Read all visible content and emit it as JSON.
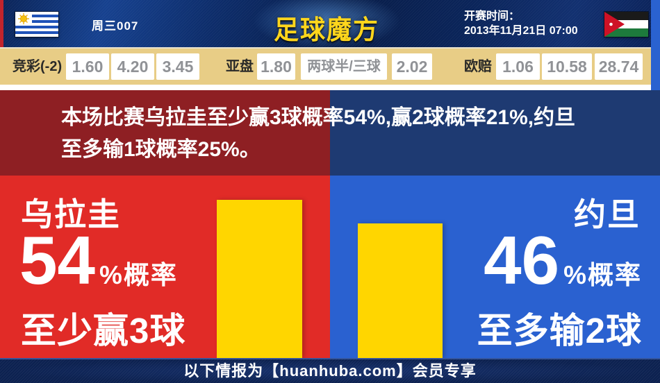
{
  "header": {
    "match_code": "周三007",
    "logo_text": "足球魔方",
    "kickoff_label": "开赛时间：",
    "kickoff_datetime": "2013年11月21日 07:00",
    "left_flag": "uruguay-flag",
    "right_flag": "jordan-flag"
  },
  "odds_bar": {
    "sections": [
      {
        "label": "竞彩(-2)",
        "values": [
          "1.60",
          "4.20",
          "3.45"
        ]
      },
      {
        "label": "亚盘",
        "values": [
          "1.80",
          "两球半/三球",
          "2.02"
        ]
      },
      {
        "label": "欧赔",
        "values": [
          "1.06",
          "10.58",
          "28.74"
        ]
      }
    ]
  },
  "summary": {
    "line1": "本场比赛乌拉圭至少赢3球概率54%,赢2球概率21%,约旦",
    "line2": "至多输1球概率25%。"
  },
  "prediction": {
    "left": {
      "team": "乌拉圭",
      "percent": 54,
      "suffix": "%概率",
      "outcome": "至少赢3球"
    },
    "right": {
      "team": "约旦",
      "percent": 46,
      "suffix": "%概率",
      "outcome": "至多输2球"
    }
  },
  "footer": {
    "text": "以下情报为【huanhuba.com】会员专享"
  },
  "colors": {
    "header_navy": "#0d2a66",
    "odds_bg": "#e8cd86",
    "summary_red": "#8e1f23",
    "summary_navy": "#1e3a72",
    "panel_red": "#e12b27",
    "panel_blue": "#2a61d0",
    "bar_yellow": "#ffd600",
    "footer_navy": "#0c2150",
    "logo_gold": "#ffd61c",
    "edge_red": "#c2242c",
    "edge_blue": "#2a62d0"
  }
}
